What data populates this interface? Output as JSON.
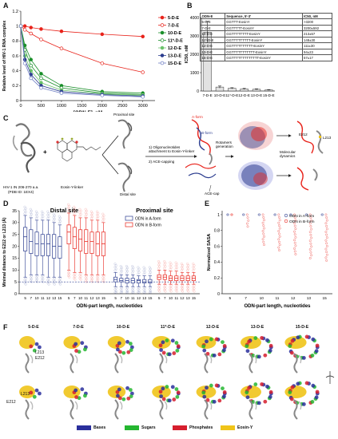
{
  "panel_labels": {
    "A": "A",
    "B": "B",
    "C": "C",
    "D": "D",
    "E": "E",
    "F": "F"
  },
  "chart_data": [
    {
      "panel": "A",
      "type": "line",
      "title": "",
      "xlabel": "[ODN-E], nM",
      "ylabel": "Relative level of HIV-1 RNA complex",
      "xlim": [
        0,
        3300
      ],
      "ylim": [
        0,
        1.2
      ],
      "xticks": [
        0,
        500,
        1000,
        1500,
        2000,
        2500,
        3000
      ],
      "yticks": [
        0,
        0.2,
        0.4,
        0.6,
        0.8,
        1.0,
        1.2
      ],
      "ytick_labels": [
        "0",
        "0.2",
        "0.4",
        "0.6",
        "0.8",
        "1",
        "1.2"
      ],
      "x": [
        0,
        100,
        250,
        500,
        1000,
        2000,
        3000
      ],
      "legend_position": "right",
      "series": [
        {
          "name": "5-D-E",
          "color": "#e8231b",
          "marker": "filled",
          "values": [
            1.0,
            1.0,
            0.98,
            0.96,
            0.93,
            0.89,
            0.86
          ]
        },
        {
          "name": "7-D-E",
          "color": "#e8231b",
          "marker": "open",
          "values": [
            1.0,
            0.95,
            0.9,
            0.82,
            0.7,
            0.5,
            0.38
          ]
        },
        {
          "name": "10-D-E",
          "color": "#1a8f2a",
          "marker": "filled",
          "values": [
            1.0,
            0.74,
            0.55,
            0.36,
            0.2,
            0.12,
            0.1
          ]
        },
        {
          "name": "11*-D-E",
          "color": "#1a8f2a",
          "marker": "open",
          "values": [
            1.0,
            0.68,
            0.47,
            0.3,
            0.17,
            0.1,
            0.08
          ]
        },
        {
          "name": "12-D-E",
          "color": "#6ac36a",
          "marker": "filled",
          "values": [
            1.0,
            0.6,
            0.4,
            0.24,
            0.14,
            0.09,
            0.07
          ]
        },
        {
          "name": "13-D-E",
          "color": "#2c3d8f",
          "marker": "filled",
          "values": [
            1.0,
            0.55,
            0.35,
            0.2,
            0.12,
            0.08,
            0.06
          ]
        },
        {
          "name": "15-D-E",
          "color": "#6f7fc4",
          "marker": "open",
          "values": [
            1.0,
            0.5,
            0.3,
            0.17,
            0.1,
            0.07,
            0.05
          ]
        }
      ]
    },
    {
      "panel": "B",
      "type": "bar",
      "title": "",
      "xlabel": "",
      "ylabel": "IC50, nM",
      "ylim": [
        0,
        4000
      ],
      "yticks": [
        0,
        1000,
        2000,
        3000,
        4000
      ],
      "categories": [
        "7-D-E",
        "10-D-E",
        "11*-D-E",
        "12-D-E",
        "13-D-E",
        "15-D-E"
      ],
      "values": [
        3200,
        213,
        148,
        111,
        94,
        57
      ],
      "errors": [
        592,
        57,
        30,
        30,
        23,
        17
      ]
    },
    {
      "panel": "D",
      "type": "box",
      "title": "",
      "xlabel": "ODN-part length, nucleotides",
      "ylabel": "Minimal distance to E212 or L213 (Å)",
      "ylim": [
        0,
        35
      ],
      "yticks": [
        0,
        5,
        10,
        15,
        20,
        25,
        30,
        35
      ],
      "groups": [
        "Distal site",
        "Proximal site"
      ],
      "categories": [
        "5",
        "7",
        "10",
        "11",
        "12",
        "13",
        "15"
      ],
      "legend": [
        "ODN in A-form",
        "ODN in B-form"
      ],
      "series": [
        {
          "name": "ODN in A-form",
          "group": "Distal site",
          "color": "#2c3d8f",
          "boxes": [
            [
              7,
              18,
              24,
              28,
              33
            ],
            [
              8,
              17,
              22,
              27,
              32
            ],
            [
              8,
              16,
              21,
              26,
              31
            ],
            [
              8,
              16,
              21,
              25,
              31
            ],
            [
              7,
              16,
              21,
              25,
              31
            ],
            [
              7,
              15,
              20,
              25,
              30
            ],
            [
              7,
              15,
              20,
              24,
              29
            ]
          ]
        },
        {
          "name": "ODN in B-form",
          "group": "Distal site",
          "color": "#e8231b",
          "boxes": [
            [
              10,
              21,
              26,
              29,
              34
            ],
            [
              9,
              19,
              24,
              28,
              33
            ],
            [
              9,
              18,
              23,
              27,
              32
            ],
            [
              8,
              17,
              22,
              27,
              32
            ],
            [
              8,
              17,
              22,
              26,
              31
            ],
            [
              8,
              16,
              21,
              26,
              31
            ],
            [
              8,
              16,
              21,
              26,
              30
            ]
          ]
        },
        {
          "name": "ODN in A-form",
          "group": "Proximal site",
          "color": "#2c3d8f",
          "boxes": [
            [
              3,
              5,
              6,
              7,
              9
            ],
            [
              3,
              5,
              5.5,
              6.5,
              8
            ],
            [
              3,
              4.5,
              5.5,
              6.5,
              8
            ],
            [
              3,
              4.5,
              5.5,
              6.5,
              8
            ],
            [
              3,
              4.5,
              5.5,
              6,
              7.5
            ],
            [
              3,
              4.5,
              5,
              6,
              7.5
            ],
            [
              3,
              4.5,
              5,
              6,
              7.5
            ]
          ]
        },
        {
          "name": "ODN in B-form",
          "group": "Proximal site",
          "color": "#e8231b",
          "boxes": [
            [
              4,
              6,
              7,
              8,
              10
            ],
            [
              4,
              6,
              7,
              8,
              10
            ],
            [
              4,
              5.5,
              6.5,
              7.5,
              9.5
            ],
            [
              4,
              5.5,
              6.5,
              7.5,
              9.5
            ],
            [
              4,
              5.5,
              6.5,
              7.5,
              9
            ],
            [
              4,
              5.5,
              6.5,
              7.5,
              9
            ],
            [
              4,
              5.5,
              6.5,
              7.5,
              9
            ]
          ]
        }
      ]
    },
    {
      "panel": "E",
      "type": "scatter",
      "title": "",
      "xlabel": "ODN-part length, nucleotides",
      "ylabel": "Normalized SASA",
      "ylim": [
        0,
        1.05
      ],
      "yticks": [
        0,
        0.2,
        0.4,
        0.6,
        0.8,
        1.0
      ],
      "ytick_labels": [
        "0",
        "0.2",
        "0.4",
        "0.6",
        "0.8",
        "1"
      ],
      "categories": [
        "5",
        "7",
        "10",
        "11",
        "12",
        "13",
        "15"
      ],
      "legend": [
        "ODN in A-form",
        "ODN in B-form"
      ],
      "series": [
        {
          "name": "ODN in A-form",
          "color": "#2c3d8f",
          "min": [
            1,
            1,
            1,
            1,
            1,
            1,
            1
          ]
        },
        {
          "name": "ODN in B-form",
          "color": "#e8231b",
          "min": [
            1,
            0.85,
            0.62,
            0.55,
            0.5,
            0.45,
            0.42
          ]
        }
      ]
    }
  ],
  "table_B": {
    "headers": [
      "ODN-E",
      "Sequence, 5'-3'",
      "IC50, nM"
    ],
    "rows": [
      [
        "5-D-E",
        "GGTTT-EosinY",
        ">3200"
      ],
      [
        "7-D-E",
        "GGTTTTT-EosinY",
        "3200±592"
      ],
      [
        "10-D-E",
        "GGTTTTTTTT-EosinY",
        "213±57"
      ],
      [
        "11*-D-E",
        "GGTTTTTTTTT-EosinY",
        "148±30"
      ],
      [
        "12-D-E",
        "GGTTTTTTTTTT-EosinY",
        "111±30"
      ],
      [
        "13-D-E",
        "GGTTTTTTTTTTT-EosinY",
        "94±23"
      ],
      [
        "15-D-E",
        "GGTTTTTTTTTTTTT-EosinY",
        "57±17"
      ]
    ]
  },
  "panel_C": {
    "protein_label": "HIV-1 IN 206-270 a.a.\n(PDB ID: 1EX4)",
    "linker_label": "Eosin-Y-linker",
    "proximal_label": "Proximal site",
    "distal_label": "Distal site",
    "step1": "1) Oligonucleotides\nattachment to Eosin-Y-linker",
    "step2": "2) ACE-capping",
    "aform_label": "A-form",
    "bform_label": "B-form",
    "acecap_label": "ACE-cap",
    "rotamers_label": "Rotamers\ngeneration",
    "md_label": "Molecular\ndynamics",
    "res1": "E212",
    "res2": "L213"
  },
  "panel_F": {
    "labels": [
      "5-D-E",
      "7-D-E",
      "10-D-E",
      "11*-D-E",
      "12-D-E",
      "13-D-E",
      "15-D-E"
    ],
    "res_top": [
      "L213",
      "E212"
    ],
    "res_bottom": [
      "E212",
      "L213"
    ],
    "legend": [
      {
        "name": "Bases",
        "color": "#2a2f9c"
      },
      {
        "name": "Sugars",
        "color": "#25b630"
      },
      {
        "name": "Phosphates",
        "color": "#d61f2e"
      },
      {
        "name": "Eosin-Y",
        "color": "#f0c419"
      }
    ]
  }
}
